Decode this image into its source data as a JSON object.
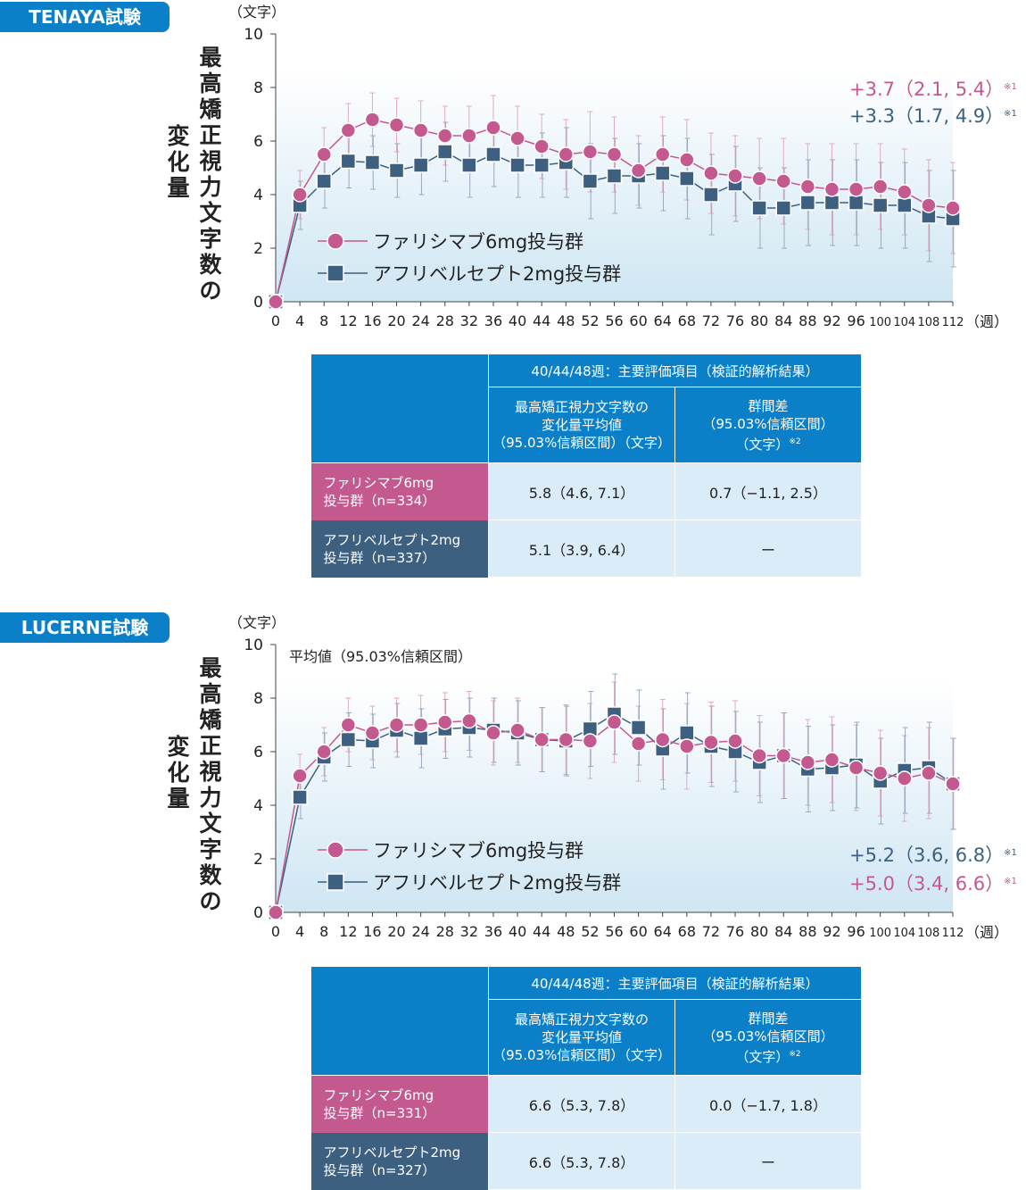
{
  "chart_data": [
    {
      "type": "line",
      "trial_label": "TENAYA試験",
      "y_unit": "（文字）",
      "ylabel": "最高矯正視力文字数の変化量",
      "x_unit": "（週）",
      "x": [
        0,
        4,
        8,
        12,
        16,
        20,
        24,
        28,
        32,
        36,
        40,
        44,
        48,
        52,
        56,
        60,
        64,
        68,
        72,
        76,
        80,
        84,
        88,
        92,
        96,
        100,
        104,
        108,
        112
      ],
      "ylim": [
        0,
        10
      ],
      "yticks": [
        0,
        2,
        4,
        6,
        8,
        10
      ],
      "legend_position": "lower-left",
      "series": [
        {
          "name": "ファリシマブ6mg投与群",
          "color": "#c3598f",
          "marker": "circle",
          "values": [
            0,
            4.0,
            5.5,
            6.4,
            6.8,
            6.6,
            6.4,
            6.2,
            6.2,
            6.5,
            6.1,
            5.8,
            5.5,
            5.6,
            5.5,
            4.9,
            5.5,
            5.3,
            4.8,
            4.7,
            4.6,
            4.5,
            4.3,
            4.2,
            4.2,
            4.3,
            4.1,
            3.6,
            3.5
          ],
          "ci": [
            0,
            0.9,
            1.0,
            1.0,
            1.0,
            1.0,
            1.1,
            1.1,
            1.1,
            1.2,
            1.2,
            1.2,
            1.3,
            1.5,
            1.4,
            1.3,
            1.4,
            1.5,
            1.5,
            1.5,
            1.5,
            1.6,
            1.6,
            1.7,
            1.7,
            1.6,
            1.6,
            1.7,
            1.7
          ]
        },
        {
          "name": "アフリベルセプト2mg投与群",
          "color": "#3d5f80",
          "marker": "square",
          "values": [
            0,
            3.6,
            4.5,
            5.25,
            5.2,
            4.9,
            5.1,
            5.6,
            5.1,
            5.5,
            5.1,
            5.1,
            5.2,
            4.5,
            4.7,
            4.7,
            4.8,
            4.6,
            4.0,
            4.4,
            3.5,
            3.5,
            3.7,
            3.7,
            3.7,
            3.6,
            3.6,
            3.2,
            3.1
          ],
          "ci": [
            0,
            0.9,
            1.0,
            1.0,
            1.0,
            1.0,
            1.1,
            1.1,
            1.2,
            1.2,
            1.2,
            1.2,
            1.3,
            1.4,
            1.4,
            1.2,
            1.4,
            1.5,
            1.5,
            1.4,
            1.5,
            1.5,
            1.6,
            1.6,
            1.6,
            1.6,
            1.6,
            1.7,
            1.8
          ]
        }
      ],
      "annotations": [
        {
          "text": "+3.7（2.1, 5.4）",
          "note": "※1",
          "color": "#c3598f"
        },
        {
          "text": "+3.3（1.7, 4.9）",
          "note": "※1",
          "color": "#3d5f80"
        }
      ]
    },
    {
      "type": "line",
      "trial_label": "LUCERNE試験",
      "y_unit": "（文字）",
      "ylabel": "最高矯正視力文字数の変化量",
      "x_unit": "（週）",
      "subtitle": "平均値（95.03%信頼区間）",
      "x": [
        0,
        4,
        8,
        12,
        16,
        20,
        24,
        28,
        32,
        36,
        40,
        44,
        48,
        52,
        56,
        60,
        64,
        68,
        72,
        76,
        80,
        84,
        88,
        92,
        96,
        100,
        104,
        108,
        112
      ],
      "ylim": [
        0,
        10
      ],
      "yticks": [
        0,
        2,
        4,
        6,
        8,
        10
      ],
      "legend_position": "lower-left",
      "series": [
        {
          "name": "ファリシマブ6mg投与群",
          "color": "#c3598f",
          "marker": "circle",
          "values": [
            0,
            5.1,
            6.0,
            7.0,
            6.7,
            7.0,
            7.0,
            7.1,
            7.15,
            6.7,
            6.8,
            6.45,
            6.45,
            6.4,
            7.1,
            6.3,
            6.45,
            6.2,
            6.35,
            6.4,
            5.85,
            5.85,
            5.6,
            5.7,
            5.4,
            5.2,
            5.0,
            5.2,
            4.8
          ],
          "ci": [
            0,
            0.8,
            0.9,
            1.0,
            1.0,
            1.0,
            1.1,
            1.1,
            1.1,
            1.2,
            1.2,
            1.2,
            1.3,
            1.4,
            1.5,
            1.4,
            1.5,
            1.6,
            1.5,
            1.5,
            1.5,
            1.6,
            1.6,
            1.6,
            1.6,
            1.6,
            1.6,
            1.7,
            1.7
          ]
        },
        {
          "name": "アフリベルセプト2mg投与群",
          "color": "#3d5f80",
          "marker": "square",
          "values": [
            0,
            4.3,
            5.8,
            6.45,
            6.4,
            6.8,
            6.5,
            6.85,
            6.9,
            6.8,
            6.7,
            6.45,
            6.4,
            6.85,
            7.4,
            6.9,
            6.1,
            6.7,
            6.2,
            6.0,
            5.6,
            5.85,
            5.35,
            5.4,
            5.5,
            4.9,
            5.3,
            5.4,
            4.8
          ],
          "ci": [
            0,
            0.8,
            0.9,
            1.0,
            1.0,
            1.0,
            1.1,
            1.1,
            1.1,
            1.2,
            1.2,
            1.2,
            1.3,
            1.4,
            1.5,
            1.4,
            1.5,
            1.5,
            1.5,
            1.5,
            1.5,
            1.6,
            1.6,
            1.6,
            1.6,
            1.6,
            1.6,
            1.7,
            1.7
          ]
        }
      ],
      "annotations": [
        {
          "text": "+5.2（3.6, 6.8）",
          "note": "※1",
          "color": "#3d5f80"
        },
        {
          "text": "+5.0（3.4, 6.6）",
          "note": "※1",
          "color": "#c3598f"
        }
      ]
    }
  ],
  "tables": [
    {
      "header_top": "40/44/48週：主要評価項目（検証的解析結果）",
      "col1_lines": [
        "最高矯正視力文字数の",
        "変化量平均値",
        "（95.03%信頼区間）（文字）"
      ],
      "col2_lines": [
        "群間差",
        "（95.03%信頼区間）",
        "（文字）"
      ],
      "col2_note": "※2",
      "rows": [
        {
          "label_lines": [
            "ファリシマブ6mg",
            "投与群（n=334）"
          ],
          "value": "5.8（4.6, 7.1）",
          "diff": "0.7（−1.1, 2.5）"
        },
        {
          "label_lines": [
            "アフリベルセプト2mg",
            "投与群（n=337）"
          ],
          "value": "5.1（3.9, 6.4）",
          "diff": "ー"
        }
      ]
    },
    {
      "header_top": "40/44/48週：主要評価項目（検証的解析結果）",
      "col1_lines": [
        "最高矯正視力文字数の",
        "変化量平均値",
        "（95.03%信頼区間）（文字）"
      ],
      "col2_lines": [
        "群間差",
        "（95.03%信頼区間）",
        "（文字）"
      ],
      "col2_note": "※2",
      "rows": [
        {
          "label_lines": [
            "ファリシマブ6mg",
            "投与群（n=331）"
          ],
          "value": "6.6（5.3, 7.8）",
          "diff": "0.0（−1.7, 1.8）"
        },
        {
          "label_lines": [
            "アフリベルセプト2mg",
            "投与群（n=327）"
          ],
          "value": "6.6（5.3, 7.8）",
          "diff": "ー"
        }
      ]
    }
  ]
}
